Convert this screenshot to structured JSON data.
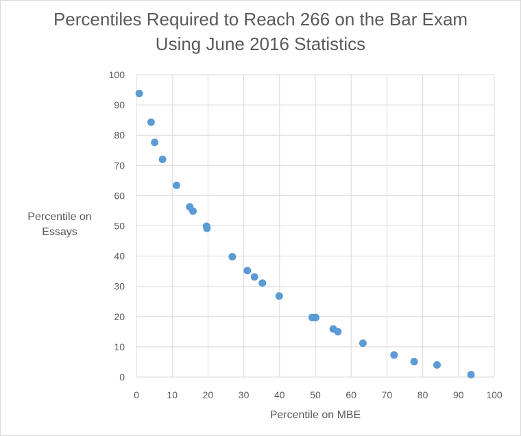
{
  "chart_data": {
    "type": "scatter",
    "title": "Percentiles Required to Reach 266 on the Bar Exam Using June 2016 Statistics",
    "xlabel": "Percentile on MBE",
    "ylabel": "Percentile on Essays",
    "xlim": [
      0,
      100
    ],
    "ylim": [
      0,
      100
    ],
    "xticks": [
      0,
      10,
      20,
      30,
      40,
      50,
      60,
      70,
      80,
      90,
      100
    ],
    "yticks": [
      0,
      10,
      20,
      30,
      40,
      50,
      60,
      70,
      80,
      90,
      100
    ],
    "grid": true,
    "marker_color": "#5b9bd5",
    "series": [
      {
        "x": [
          0.8,
          4.1,
          5.1,
          7.3,
          11.2,
          14.9,
          15.8,
          19.6,
          19.7,
          26.8,
          31.0,
          33.0,
          35.2,
          39.9,
          49.1,
          50.1,
          55.0,
          56.3,
          63.3,
          72.0,
          77.6,
          84.0,
          93.5
        ],
        "y": [
          93.8,
          84.3,
          77.6,
          72.0,
          63.4,
          56.3,
          54.9,
          49.9,
          49.2,
          39.8,
          35.2,
          33.1,
          31.1,
          26.8,
          19.7,
          19.7,
          15.9,
          15.0,
          11.2,
          7.3,
          5.1,
          4.0,
          0.8
        ]
      }
    ]
  }
}
